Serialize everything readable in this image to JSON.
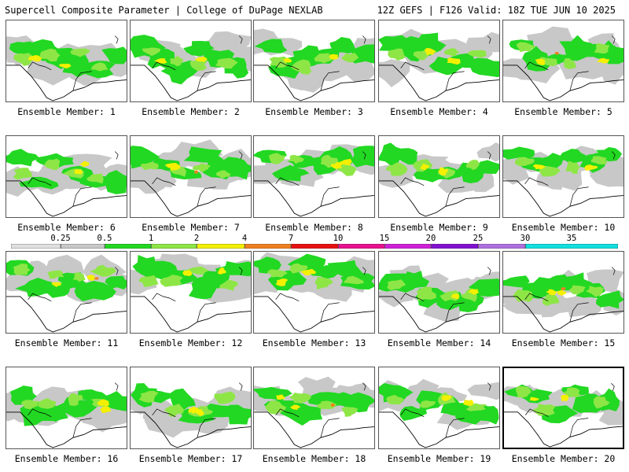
{
  "header": {
    "title_left": "Supercell Composite Parameter | College of DuPage NEXLAB",
    "title_right": "12Z GEFS | F126 Valid: 18Z TUE JUN 10 2025"
  },
  "legend": {
    "ticks": [
      "0.25",
      "0.5",
      "1",
      "2",
      "4",
      "7",
      "10",
      "15",
      "20",
      "25",
      "30",
      "35"
    ],
    "colors": [
      "#e0e0e0",
      "#c8c8c8",
      "#22d822",
      "#8ee646",
      "#f5f000",
      "#f08020",
      "#e81010",
      "#e8108e",
      "#d020d8",
      "#8010d0",
      "#b070e0",
      "#10e0e0"
    ]
  },
  "palette": {
    "light_gray": "#c8c8c8",
    "green": "#22d822",
    "light_green": "#8ee646",
    "yellow": "#f5f000",
    "orange": "#f08020",
    "red": "#e81010"
  },
  "members": [
    {
      "label": "Ensemble Member: 1"
    },
    {
      "label": "Ensemble Member: 2"
    },
    {
      "label": "Ensemble Member: 3"
    },
    {
      "label": "Ensemble Member: 4"
    },
    {
      "label": "Ensemble Member: 5"
    },
    {
      "label": "Ensemble Member: 6"
    },
    {
      "label": "Ensemble Member: 7"
    },
    {
      "label": "Ensemble Member: 8"
    },
    {
      "label": "Ensemble Member: 9"
    },
    {
      "label": "Ensemble Member: 10"
    },
    {
      "label": "Ensemble Member: 11"
    },
    {
      "label": "Ensemble Member: 12"
    },
    {
      "label": "Ensemble Member: 13"
    },
    {
      "label": "Ensemble Member: 14"
    },
    {
      "label": "Ensemble Member: 15"
    },
    {
      "label": "Ensemble Member: 16"
    },
    {
      "label": "Ensemble Member: 17"
    },
    {
      "label": "Ensemble Member: 18"
    },
    {
      "label": "Ensemble Member: 19"
    },
    {
      "label": "Ensemble Member: 20"
    }
  ]
}
